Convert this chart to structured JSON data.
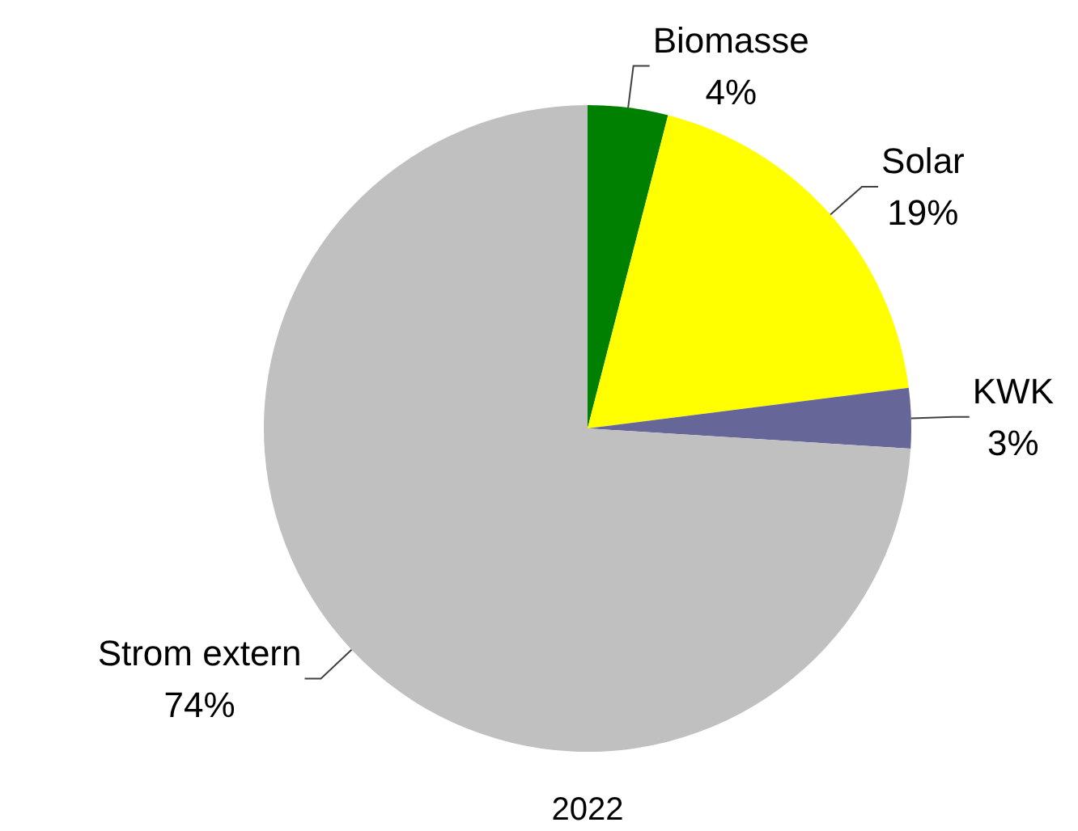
{
  "chart_data": {
    "type": "pie",
    "title": "2022",
    "categories": [
      "Biomasse",
      "Solar",
      "KWK",
      "Strom extern"
    ],
    "values": [
      4,
      19,
      3,
      74
    ],
    "colors": [
      "#008000",
      "#ffff00",
      "#666699",
      "#c0c0c0"
    ],
    "value_labels": [
      "4%",
      "19%",
      "3%",
      "74%"
    ]
  }
}
